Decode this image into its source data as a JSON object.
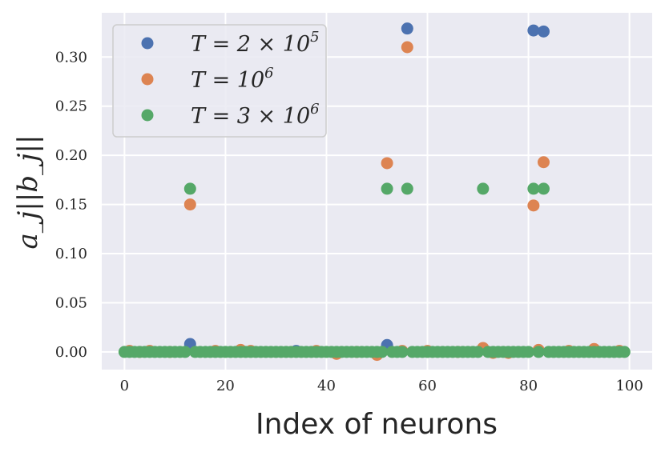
{
  "chart_data": {
    "type": "scatter",
    "title": "",
    "xlabel": "Index of neurons",
    "ylabel": "a_j||b_j||",
    "xlim": [
      -4.5,
      104.5
    ],
    "ylim": [
      -0.018,
      0.345
    ],
    "x_ticks": [
      0,
      20,
      40,
      60,
      80,
      100
    ],
    "x_tick_labels": [
      "0",
      "20",
      "40",
      "60",
      "80",
      "100"
    ],
    "y_ticks": [
      0.0,
      0.05,
      0.1,
      0.15,
      0.2,
      0.25,
      0.3
    ],
    "y_tick_labels": [
      "0.00",
      "0.05",
      "0.10",
      "0.15",
      "0.20",
      "0.25",
      "0.30"
    ],
    "grid": true,
    "legend_position": "top-left",
    "background_color": "#eaeaf2",
    "series": [
      {
        "name": "T = 2 × 10^5",
        "color": "#4c72b0",
        "points": [
          [
            13,
            0.008
          ],
          [
            34,
            0.001
          ],
          [
            52,
            0.007
          ],
          [
            56,
            0.329
          ],
          [
            81,
            0.327
          ],
          [
            83,
            0.326
          ]
        ]
      },
      {
        "name": "T = 10^6",
        "color": "#dd8452",
        "points": [
          [
            1,
            0.001
          ],
          [
            3,
            0.0
          ],
          [
            5,
            0.001
          ],
          [
            9,
            0.0
          ],
          [
            13,
            0.15
          ],
          [
            18,
            0.001
          ],
          [
            23,
            0.002
          ],
          [
            25,
            0.001
          ],
          [
            38,
            0.001
          ],
          [
            42,
            -0.002
          ],
          [
            46,
            0.0
          ],
          [
            50,
            -0.003
          ],
          [
            52,
            0.192
          ],
          [
            55,
            0.001
          ],
          [
            56,
            0.31
          ],
          [
            60,
            0.001
          ],
          [
            66,
            0.0
          ],
          [
            71,
            0.004
          ],
          [
            73,
            -0.001
          ],
          [
            76,
            -0.001
          ],
          [
            81,
            0.149
          ],
          [
            82,
            0.002
          ],
          [
            83,
            0.193
          ],
          [
            88,
            0.001
          ],
          [
            93,
            0.003
          ],
          [
            98,
            0.001
          ]
        ]
      },
      {
        "name": "T = 3 × 10^6",
        "color": "#55a868",
        "points": [
          [
            13,
            0.166
          ],
          [
            52,
            0.166
          ],
          [
            56,
            0.166
          ],
          [
            71,
            0.166
          ],
          [
            81,
            0.166
          ],
          [
            83,
            0.166
          ]
        ]
      }
    ],
    "baseline": {
      "note_color": "#55a868",
      "x_start": 0,
      "x_end": 99,
      "value": 0.0
    },
    "legend": [
      {
        "main": "T = 2 × 10",
        "sup": "5",
        "color": "#4c72b0"
      },
      {
        "main": "T = 10",
        "sup": "6",
        "color": "#dd8452"
      },
      {
        "main": "T = 3 × 10",
        "sup": "6",
        "color": "#55a868"
      }
    ]
  }
}
